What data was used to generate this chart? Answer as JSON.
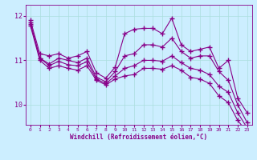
{
  "xlabel": "Windchill (Refroidissement éolien,°C)",
  "background_color": "#cceeff",
  "line_color": "#880088",
  "grid_color": "#aadddd",
  "xlim": [
    -0.5,
    23.5
  ],
  "ylim": [
    9.55,
    12.25
  ],
  "yticks": [
    10,
    11,
    12
  ],
  "xticks": [
    0,
    1,
    2,
    3,
    4,
    5,
    6,
    7,
    8,
    9,
    10,
    11,
    12,
    13,
    14,
    15,
    16,
    17,
    18,
    19,
    20,
    21,
    22,
    23
  ],
  "line1_x": [
    0,
    1,
    2,
    3,
    4,
    5,
    6,
    7,
    8,
    9,
    10,
    11,
    12,
    13,
    14,
    15,
    16,
    17,
    18,
    19,
    20,
    21,
    22,
    23
  ],
  "line1_y": [
    11.9,
    11.15,
    11.1,
    11.15,
    11.05,
    11.1,
    11.2,
    10.72,
    10.6,
    10.85,
    11.6,
    11.7,
    11.72,
    11.72,
    11.6,
    11.95,
    11.35,
    11.2,
    11.25,
    11.3,
    10.82,
    11.0,
    10.15,
    9.82
  ],
  "line2_x": [
    0,
    1,
    2,
    3,
    4,
    5,
    6,
    7,
    8,
    9,
    10,
    11,
    12,
    13,
    14,
    15,
    16,
    17,
    18,
    19,
    20,
    21,
    22,
    23
  ],
  "line2_y": [
    11.85,
    11.05,
    10.92,
    11.05,
    11.0,
    10.95,
    11.05,
    10.62,
    10.52,
    10.75,
    11.1,
    11.15,
    11.35,
    11.35,
    11.3,
    11.5,
    11.2,
    11.05,
    11.1,
    11.1,
    10.75,
    10.55,
    10.0,
    9.6
  ],
  "line3_x": [
    0,
    1,
    2,
    3,
    4,
    5,
    6,
    7,
    8,
    9,
    10,
    11,
    12,
    13,
    14,
    15,
    16,
    17,
    18,
    19,
    20,
    21,
    22,
    23
  ],
  "line3_y": [
    11.82,
    11.05,
    10.88,
    10.98,
    10.9,
    10.88,
    10.97,
    10.58,
    10.48,
    10.65,
    10.82,
    10.88,
    11.0,
    11.0,
    10.98,
    11.1,
    10.95,
    10.82,
    10.78,
    10.68,
    10.42,
    10.28,
    9.82,
    9.48
  ],
  "line4_x": [
    0,
    1,
    2,
    3,
    4,
    5,
    6,
    7,
    8,
    9,
    10,
    11,
    12,
    13,
    14,
    15,
    16,
    17,
    18,
    19,
    20,
    21,
    22,
    23
  ],
  "line4_y": [
    11.78,
    11.0,
    10.82,
    10.88,
    10.82,
    10.78,
    10.88,
    10.55,
    10.45,
    10.58,
    10.65,
    10.68,
    10.82,
    10.82,
    10.8,
    10.88,
    10.78,
    10.62,
    10.58,
    10.48,
    10.2,
    10.05,
    9.65,
    9.38
  ]
}
